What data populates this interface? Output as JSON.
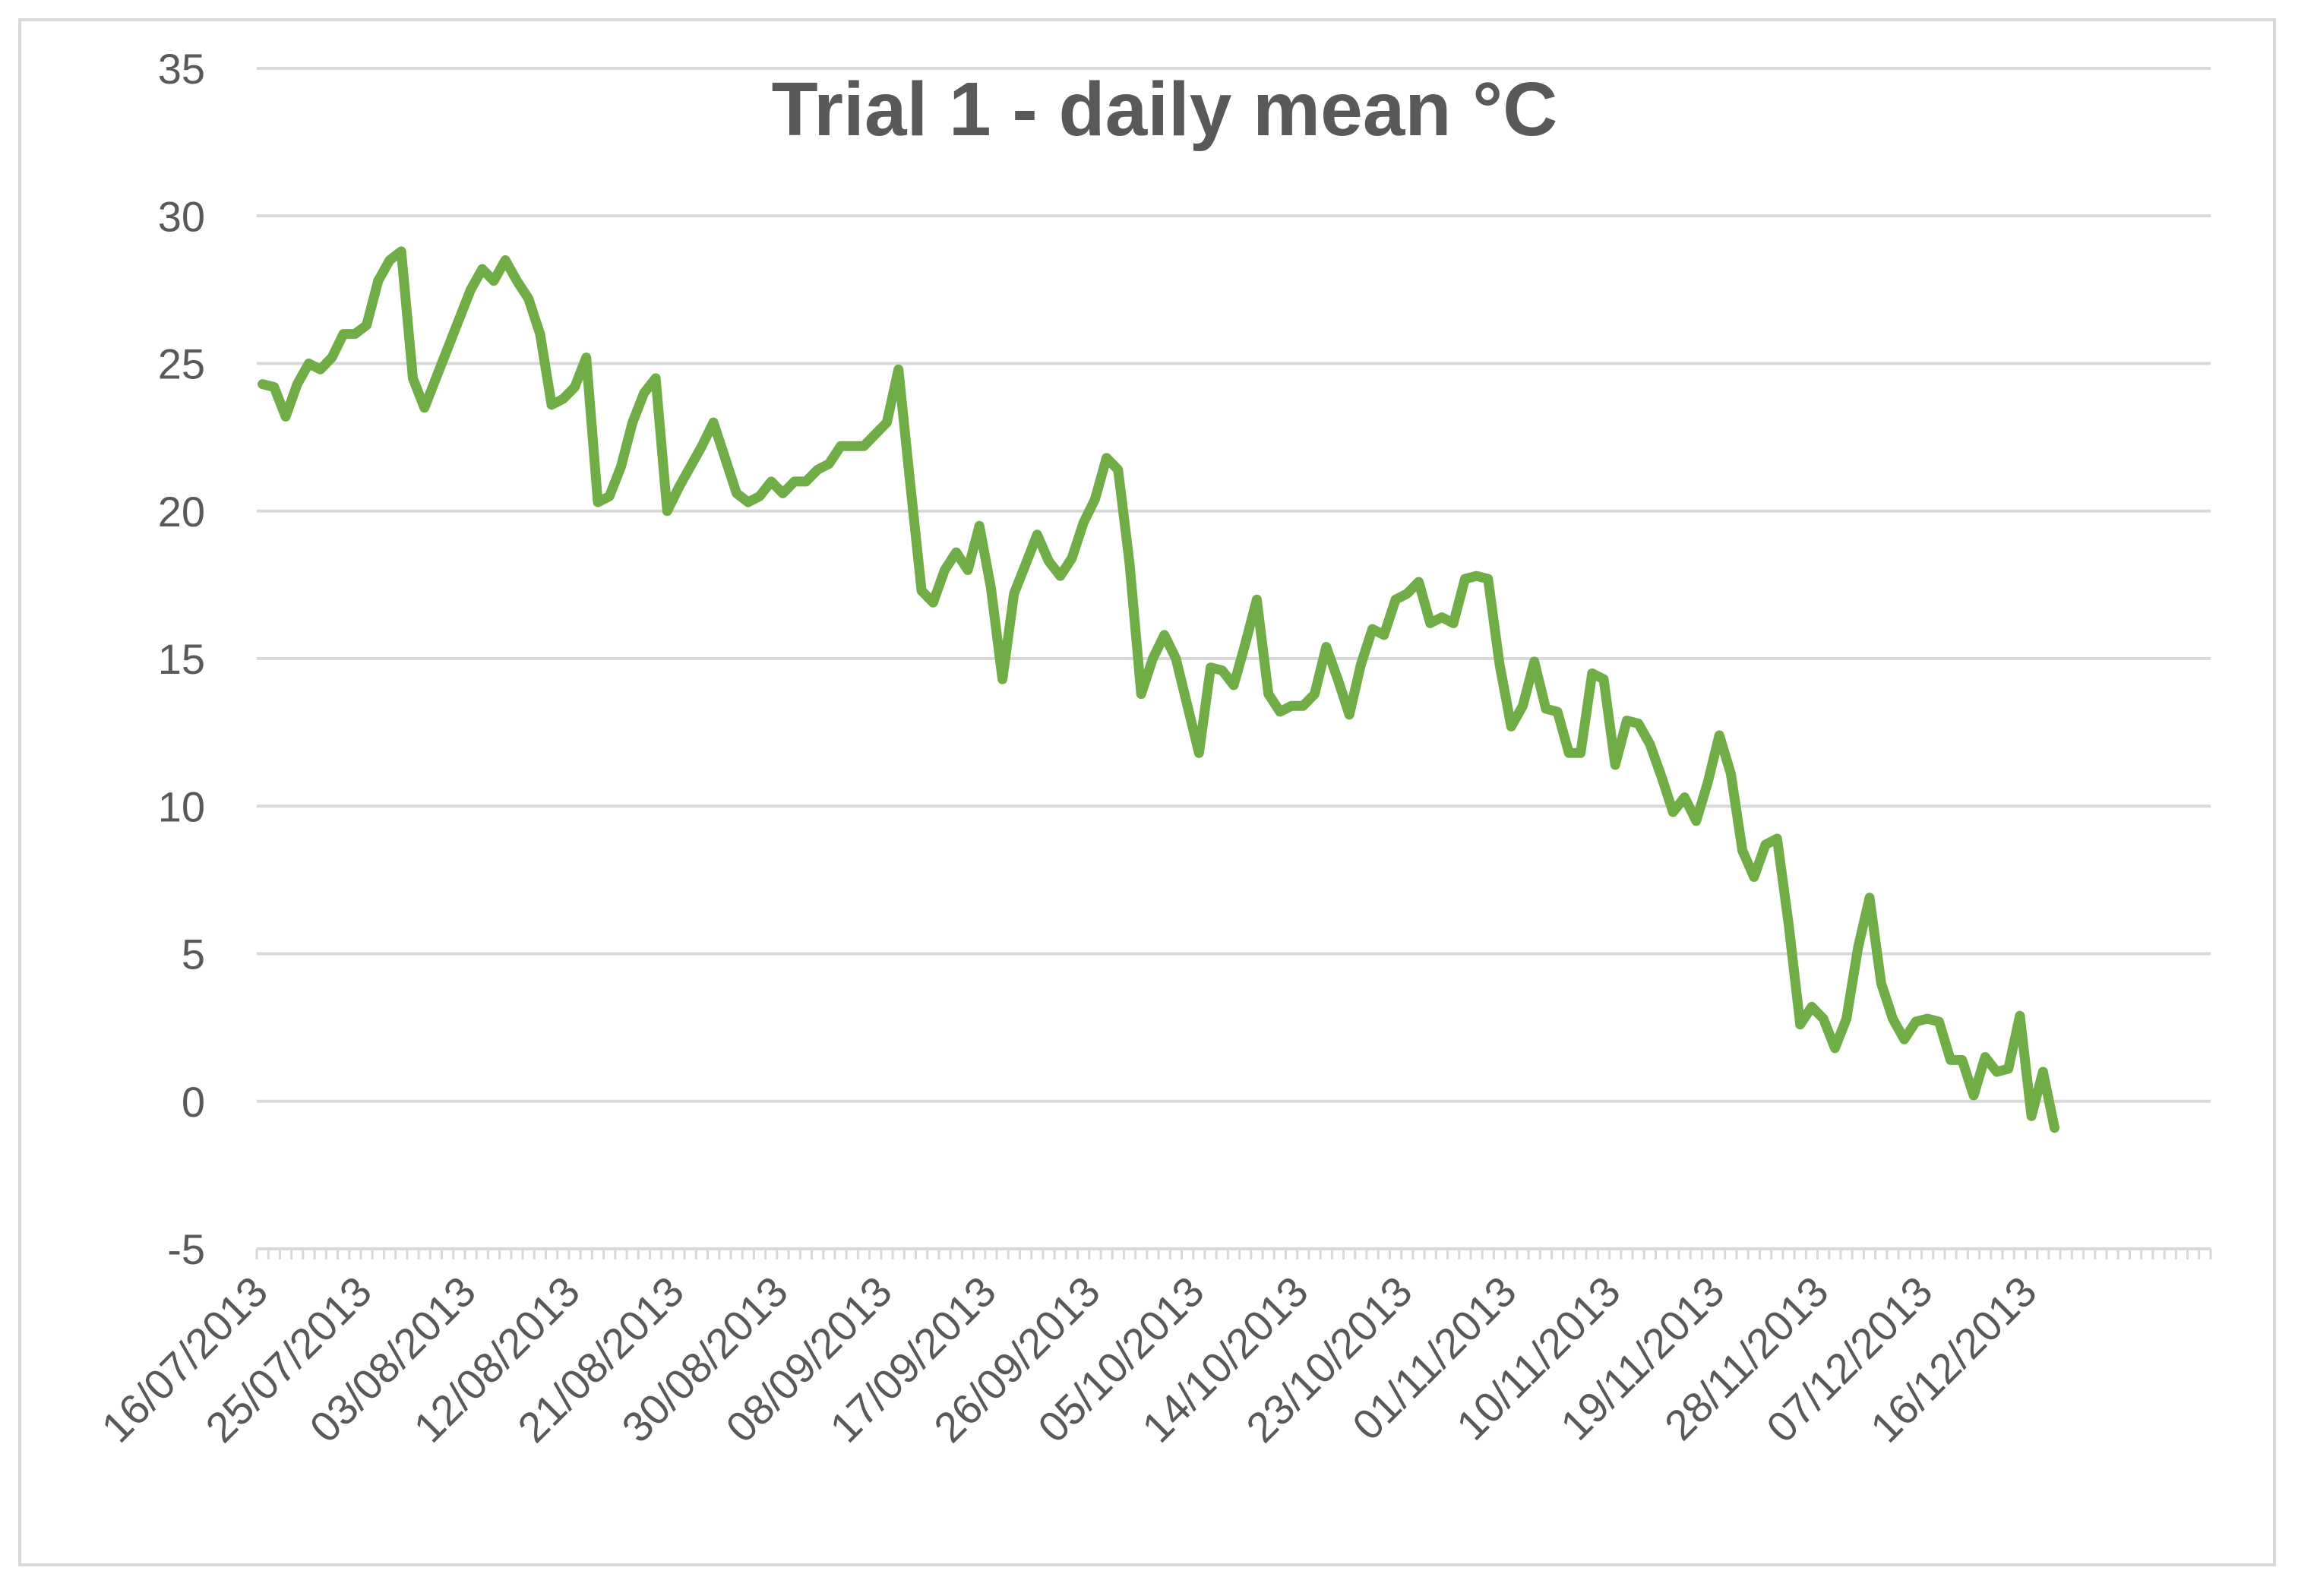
{
  "chart_data": {
    "type": "line",
    "title": "Trial 1 - daily mean °C",
    "xlabel": "",
    "ylabel": "",
    "ylim": [
      -5,
      35
    ],
    "yticks": [
      "35",
      "30",
      "25",
      "20",
      "15",
      "10",
      "5",
      "0",
      "-5"
    ],
    "x_start": "16/07/2013",
    "x_tick_labels": [
      "16/07/2013",
      "25/07/2013",
      "03/08/2013",
      "12/08/2013",
      "21/08/2013",
      "30/08/2013",
      "08/09/2013",
      "17/09/2013",
      "26/09/2013",
      "05/10/2013",
      "14/10/2013",
      "23/10/2013",
      "01/11/2013",
      "10/11/2013",
      "19/11/2013",
      "28/11/2013",
      "07/12/2013",
      "16/12/2013"
    ],
    "grid": true,
    "legend": "none",
    "series": [
      {
        "color": "#70ad47",
        "values": [
          24.3,
          24.2,
          23.2,
          24.3,
          25.0,
          24.8,
          25.2,
          26.0,
          26.0,
          26.3,
          27.8,
          28.5,
          28.8,
          24.5,
          23.5,
          24.5,
          25.5,
          26.5,
          27.5,
          28.2,
          27.8,
          28.5,
          27.8,
          27.2,
          26.0,
          23.6,
          23.8,
          24.2,
          25.2,
          20.3,
          20.5,
          21.5,
          23.0,
          24.0,
          24.5,
          20.0,
          20.8,
          21.5,
          22.2,
          23.0,
          21.8,
          20.6,
          20.3,
          20.5,
          21.0,
          20.6,
          21.0,
          21.0,
          21.4,
          21.6,
          22.2,
          22.2,
          22.2,
          22.6,
          23.0,
          24.8,
          21.0,
          17.3,
          16.9,
          18.0,
          18.6,
          18.0,
          19.5,
          17.4,
          14.3,
          17.2,
          18.2,
          19.2,
          18.3,
          17.8,
          18.4,
          19.6,
          20.4,
          21.8,
          21.4,
          18.2,
          13.8,
          15.0,
          15.8,
          15.0,
          13.4,
          11.8,
          14.7,
          14.6,
          14.1,
          15.5,
          17.0,
          13.8,
          13.2,
          13.4,
          13.4,
          13.8,
          15.4,
          14.3,
          13.1,
          14.8,
          16.0,
          15.8,
          17.0,
          17.2,
          17.6,
          16.2,
          16.4,
          16.2,
          17.7,
          17.8,
          17.7,
          14.8,
          12.7,
          13.4,
          14.9,
          13.3,
          13.2,
          11.8,
          11.8,
          14.5,
          14.3,
          11.4,
          12.9,
          12.8,
          12.1,
          11.0,
          9.8,
          10.3,
          9.5,
          10.8,
          12.4,
          11.1,
          8.5,
          7.6,
          8.7,
          8.9,
          6.0,
          2.6,
          3.2,
          2.8,
          1.8,
          2.8,
          5.2,
          6.9,
          4.0,
          2.8,
          2.1,
          2.7,
          2.8,
          2.7,
          1.4,
          1.4,
          0.2,
          1.5,
          1.0,
          1.1,
          2.9,
          -0.5,
          1.0,
          -0.9
        ]
      }
    ]
  }
}
